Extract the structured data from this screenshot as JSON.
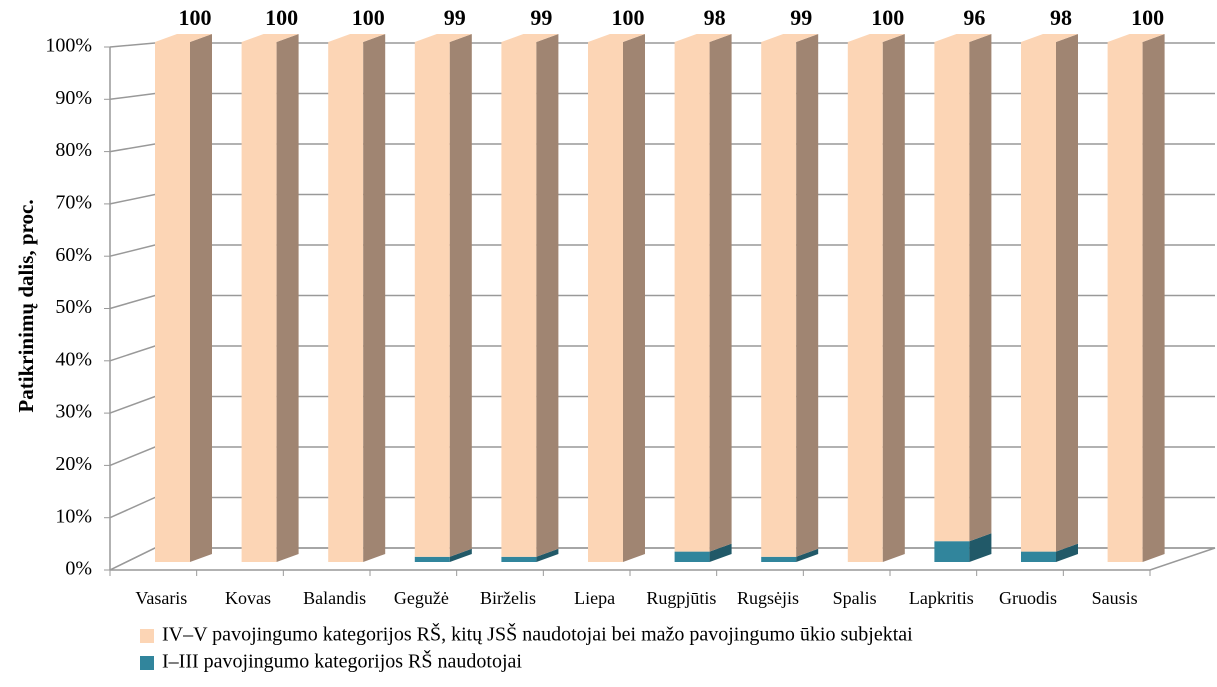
{
  "chart_data": {
    "type": "bar3d_stacked",
    "y_label": "Patikrinimų dalis, proc.",
    "categories": [
      "Vasaris",
      "Kovas",
      "Balandis",
      "Gegužė",
      "Birželis",
      "Liepa",
      "Rugpjūtis",
      "Rugsėjis",
      "Spalis",
      "Lapkritis",
      "Gruodis",
      "Sausis"
    ],
    "series": [
      {
        "name": "I–III pavojingumo kategorijos RŠ naudotojai",
        "color": "#31859c",
        "side_color": "#215968",
        "values": [
          0,
          0,
          0,
          1,
          1,
          0,
          2,
          1,
          0,
          4,
          2,
          0
        ]
      },
      {
        "name": "IV–V pavojingumo kategorijos RŠ, kitų JSŠ naudotojai bei mažo pavojingumo ūkio subjektai",
        "color": "#fcd5b5",
        "side_color": "#a08572",
        "values": [
          100,
          100,
          100,
          99,
          99,
          100,
          98,
          99,
          100,
          96,
          98,
          100
        ]
      }
    ],
    "ylim": [
      0,
      100
    ],
    "yticks": [
      {
        "value": 0,
        "label": "0%"
      },
      {
        "value": 10,
        "label": "10%"
      },
      {
        "value": 20,
        "label": "20%"
      },
      {
        "value": 30,
        "label": "30%"
      },
      {
        "value": 40,
        "label": "40%"
      },
      {
        "value": 50,
        "label": "50%"
      },
      {
        "value": 60,
        "label": "60%"
      },
      {
        "value": 70,
        "label": "70%"
      },
      {
        "value": 80,
        "label": "80%"
      },
      {
        "value": 90,
        "label": "90%"
      },
      {
        "value": 100,
        "label": "100%"
      }
    ],
    "grid": true,
    "legend": "bottom"
  }
}
